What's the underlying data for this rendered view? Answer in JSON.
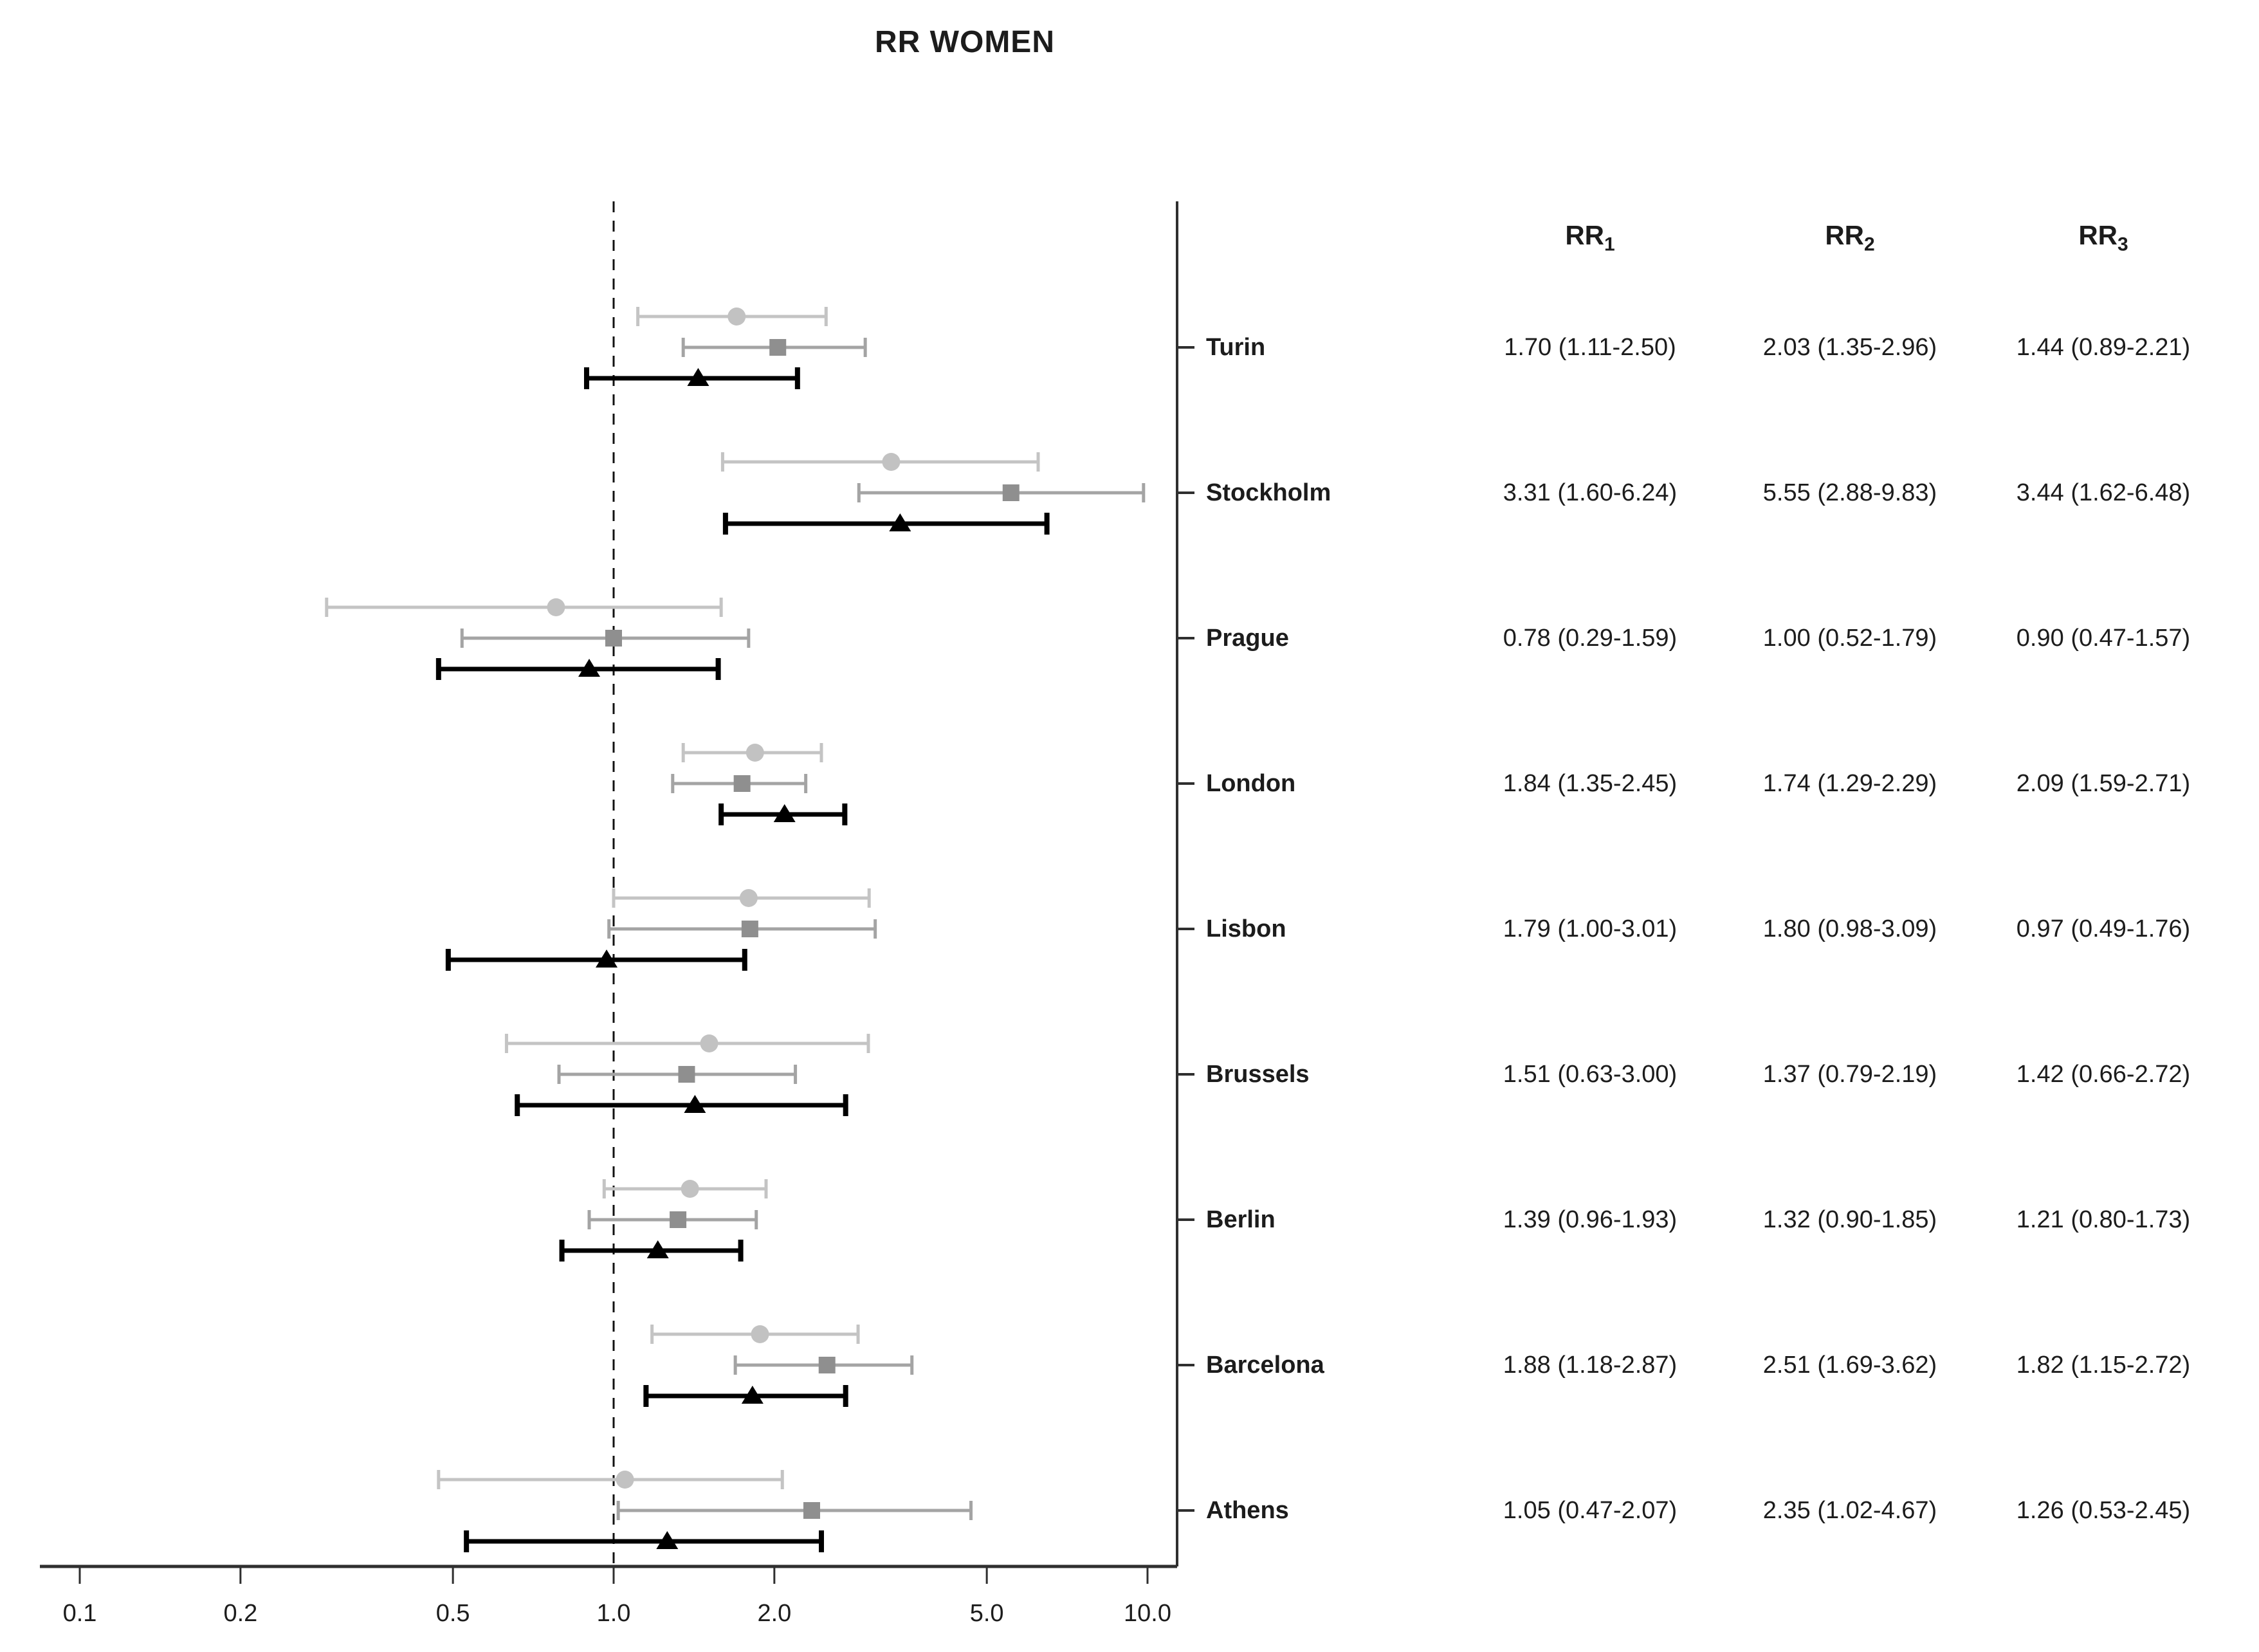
{
  "title": "RR WOMEN",
  "table": {
    "headers": [
      {
        "base": "RR",
        "sub": "1"
      },
      {
        "base": "RR",
        "sub": "2"
      },
      {
        "base": "RR",
        "sub": "3"
      }
    ]
  },
  "chart_data": {
    "type": "forest",
    "title": "RR WOMEN",
    "x_scale": "log10",
    "x_range": [
      0.1,
      10.0
    ],
    "x_ticks": [
      "0.1",
      "0.2",
      "0.5",
      "1.0",
      "2.0",
      "5.0",
      "10.0"
    ],
    "reference_line": 1.0,
    "axis_color": "#2f2f2f",
    "text_color": "#1c1c1c",
    "series": [
      {
        "name": "RR1",
        "marker": "circle",
        "line_color": "#c4c4c4",
        "marker_color": "#c2c2c2"
      },
      {
        "name": "RR2",
        "marker": "square",
        "line_color": "#a4a4a4",
        "marker_color": "#8f8f8f"
      },
      {
        "name": "RR3",
        "marker": "triangle",
        "line_color": "#000000",
        "marker_color": "#000000"
      }
    ],
    "rows": [
      {
        "city": "Turin",
        "values": [
          {
            "est": 1.7,
            "lo": 1.11,
            "hi": 2.5,
            "label": "1.70 (1.11-2.50)"
          },
          {
            "est": 2.03,
            "lo": 1.35,
            "hi": 2.96,
            "label": "2.03 (1.35-2.96)"
          },
          {
            "est": 1.44,
            "lo": 0.89,
            "hi": 2.21,
            "label": "1.44 (0.89-2.21)"
          }
        ]
      },
      {
        "city": "Stockholm",
        "values": [
          {
            "est": 3.31,
            "lo": 1.6,
            "hi": 6.24,
            "label": "3.31 (1.60-6.24)"
          },
          {
            "est": 5.55,
            "lo": 2.88,
            "hi": 9.83,
            "label": "5.55 (2.88-9.83)"
          },
          {
            "est": 3.44,
            "lo": 1.62,
            "hi": 6.48,
            "label": "3.44 (1.62-6.48)"
          }
        ]
      },
      {
        "city": "Prague",
        "values": [
          {
            "est": 0.78,
            "lo": 0.29,
            "hi": 1.59,
            "label": "0.78 (0.29-1.59)"
          },
          {
            "est": 1.0,
            "lo": 0.52,
            "hi": 1.79,
            "label": "1.00 (0.52-1.79)"
          },
          {
            "est": 0.9,
            "lo": 0.47,
            "hi": 1.57,
            "label": "0.90 (0.47-1.57)"
          }
        ]
      },
      {
        "city": "London",
        "values": [
          {
            "est": 1.84,
            "lo": 1.35,
            "hi": 2.45,
            "label": "1.84 (1.35-2.45)"
          },
          {
            "est": 1.74,
            "lo": 1.29,
            "hi": 2.29,
            "label": "1.74 (1.29-2.29)"
          },
          {
            "est": 2.09,
            "lo": 1.59,
            "hi": 2.71,
            "label": "2.09 (1.59-2.71)"
          }
        ]
      },
      {
        "city": "Lisbon",
        "values": [
          {
            "est": 1.79,
            "lo": 1.0,
            "hi": 3.01,
            "label": "1.79 (1.00-3.01)"
          },
          {
            "est": 1.8,
            "lo": 0.98,
            "hi": 3.09,
            "label": "1.80 (0.98-3.09)"
          },
          {
            "est": 0.97,
            "lo": 0.49,
            "hi": 1.76,
            "label": "0.97 (0.49-1.76)"
          }
        ]
      },
      {
        "city": "Brussels",
        "values": [
          {
            "est": 1.51,
            "lo": 0.63,
            "hi": 3.0,
            "label": "1.51 (0.63-3.00)"
          },
          {
            "est": 1.37,
            "lo": 0.79,
            "hi": 2.19,
            "label": "1.37 (0.79-2.19)"
          },
          {
            "est": 1.42,
            "lo": 0.66,
            "hi": 2.72,
            "label": "1.42 (0.66-2.72)"
          }
        ]
      },
      {
        "city": "Berlin",
        "values": [
          {
            "est": 1.39,
            "lo": 0.96,
            "hi": 1.93,
            "label": "1.39 (0.96-1.93)"
          },
          {
            "est": 1.32,
            "lo": 0.9,
            "hi": 1.85,
            "label": "1.32 (0.90-1.85)"
          },
          {
            "est": 1.21,
            "lo": 0.8,
            "hi": 1.73,
            "label": "1.21 (0.80-1.73)"
          }
        ]
      },
      {
        "city": "Barcelona",
        "values": [
          {
            "est": 1.88,
            "lo": 1.18,
            "hi": 2.87,
            "label": "1.88 (1.18-2.87)"
          },
          {
            "est": 2.51,
            "lo": 1.69,
            "hi": 3.62,
            "label": "2.51 (1.69-3.62)"
          },
          {
            "est": 1.82,
            "lo": 1.15,
            "hi": 2.72,
            "label": "1.82 (1.15-2.72)"
          }
        ]
      },
      {
        "city": "Athens",
        "values": [
          {
            "est": 1.05,
            "lo": 0.47,
            "hi": 2.07,
            "label": "1.05 (0.47-2.07)"
          },
          {
            "est": 2.35,
            "lo": 1.02,
            "hi": 4.67,
            "label": "2.35 (1.02-4.67)"
          },
          {
            "est": 1.26,
            "lo": 0.53,
            "hi": 2.45,
            "label": "1.26 (0.53-2.45)"
          }
        ]
      }
    ]
  }
}
